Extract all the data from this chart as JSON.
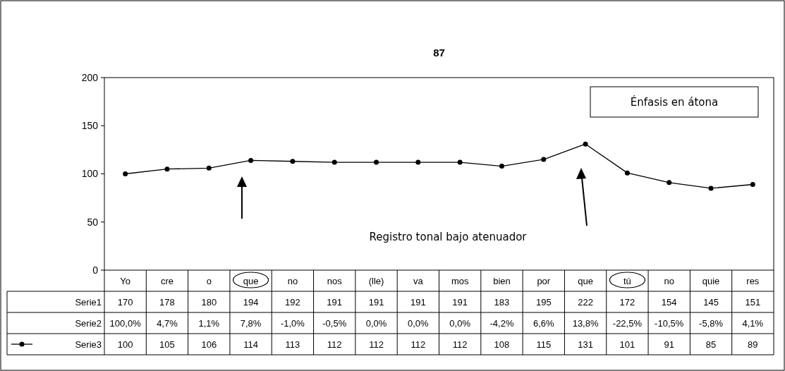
{
  "chart_data": {
    "type": "line",
    "title": "87",
    "categories": [
      "Yo",
      "cre",
      "o",
      "que",
      "no",
      "nos",
      "(lle)",
      "va",
      "mos",
      "bien",
      "por",
      "que",
      "tú",
      "no",
      "quie",
      "res"
    ],
    "series": [
      {
        "name": "Serie1",
        "values": [
          null,
          null,
          null,
          null,
          null,
          null,
          null,
          null,
          null,
          null,
          null,
          null,
          null,
          null,
          null,
          null
        ],
        "value_labels": [
          "170",
          "178",
          "180",
          "194",
          "192",
          "191",
          "191",
          "191",
          "191",
          "183",
          "195",
          "222",
          "172",
          "154",
          "145",
          "151"
        ]
      },
      {
        "name": "Serie2",
        "values": [
          null,
          null,
          null,
          null,
          null,
          null,
          null,
          null,
          null,
          null,
          null,
          null,
          null,
          null,
          null,
          null
        ],
        "value_labels": [
          "100,0%",
          "4,7%",
          "1,1%",
          "7,8%",
          "-1,0%",
          "-0,5%",
          "0,0%",
          "0,0%",
          "0,0%",
          "-4,2%",
          "6,6%",
          "13,8%",
          "-22,5%",
          "-10,5%",
          "-5,8%",
          "4,1%"
        ]
      },
      {
        "name": "Serie3",
        "color": "#000000",
        "values": [
          100,
          105,
          106,
          114,
          113,
          112,
          112,
          112,
          112,
          108,
          115,
          131,
          101,
          91,
          85,
          89
        ]
      }
    ],
    "ylim": [
      0,
      200
    ],
    "yticks": [
      0,
      50,
      100,
      150,
      200
    ],
    "marker": "circle",
    "legend": "bottom",
    "data_labels": true,
    "annotations": [
      "Énfasis en átona",
      "Registro tonal bajo atenuador"
    ]
  }
}
